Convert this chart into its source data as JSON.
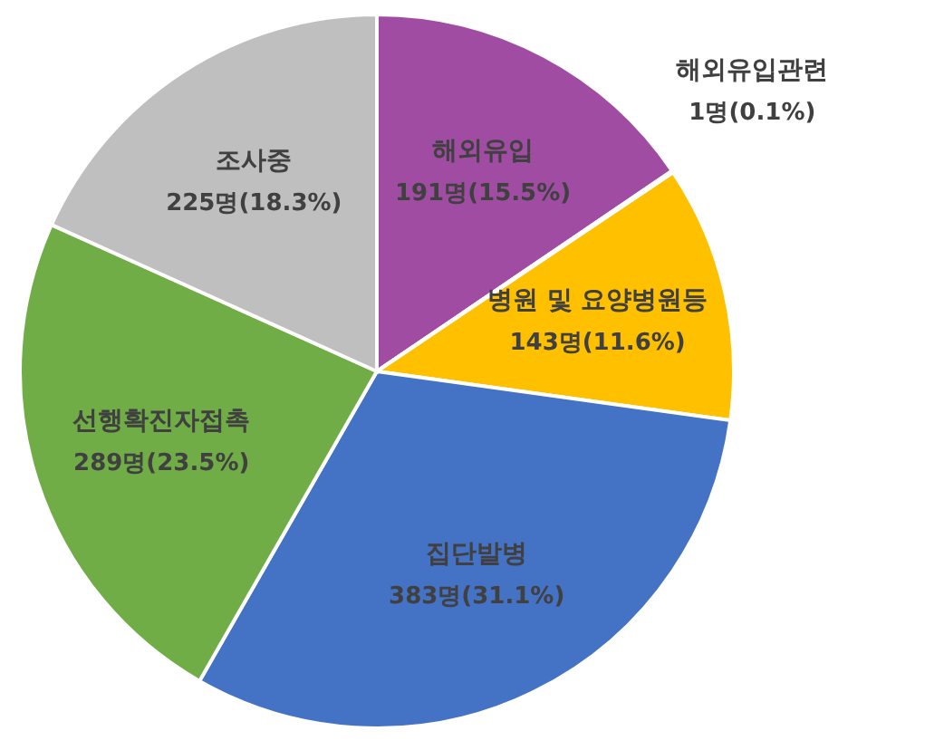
{
  "chart_data": {
    "type": "pie",
    "categories": [
      "해외유입",
      "해외유입관련",
      "병원 및 요양병원등",
      "집단발병",
      "선행확진자접촉",
      "조사중"
    ],
    "values": [
      191,
      1,
      143,
      383,
      289,
      225
    ],
    "value_labels": [
      "191명(15.5%)",
      "1명(0.1%)",
      "143명(11.6%)",
      "383명(31.1%)",
      "289명(23.5%)",
      "225명(18.3%)"
    ],
    "colors": [
      "#a04ca3",
      "#5b9bd5",
      "#ffc000",
      "#4472c4",
      "#70ad47",
      "#bfbfbf"
    ]
  }
}
